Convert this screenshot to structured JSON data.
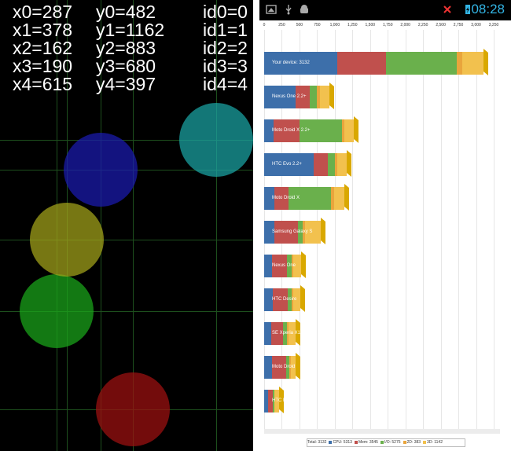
{
  "touch": {
    "rows": [
      {
        "x": "x0=287",
        "y": "y0=482",
        "id": "id0=0"
      },
      {
        "x": "x1=378",
        "y": "y1=1162",
        "id": "id1=1"
      },
      {
        "x": "x2=162",
        "y": "y2=883",
        "id": "id2=2"
      },
      {
        "x": "x3=190",
        "y": "y3=680",
        "id": "id3=3"
      },
      {
        "x": "x4=615",
        "y": "y4=397",
        "id": "id4=4"
      }
    ],
    "points": [
      {
        "id": 0,
        "x": 287,
        "y": 482,
        "color": "#1a1ab0"
      },
      {
        "id": 1,
        "x": 378,
        "y": 1162,
        "color": "#a01010"
      },
      {
        "id": 2,
        "x": 162,
        "y": 883,
        "color": "#1ba81b"
      },
      {
        "id": 3,
        "x": 190,
        "y": 680,
        "color": "#a5a51b"
      },
      {
        "id": 4,
        "x": 615,
        "y": 397,
        "color": "#1ba5a5"
      }
    ]
  },
  "status": {
    "time": "08:28",
    "icons": [
      "screenshot-icon",
      "usb-icon",
      "android-debug-icon",
      "no-signal-icon",
      "battery-charging-icon"
    ]
  },
  "chart_data": {
    "type": "bar",
    "orientation": "horizontal",
    "stacked": true,
    "xlim": [
      0,
      3250
    ],
    "ticks": [
      "0",
      "250",
      "500",
      "750",
      "1,000",
      "1,250",
      "1,500",
      "1,750",
      "2,000",
      "2,250",
      "2,500",
      "2,750",
      "3,000",
      "3,250"
    ],
    "categories": [
      "Your device: 3132",
      "Nexus One 2.2+",
      "Moto Droid X 2.2+",
      "HTC Evo 2.2+",
      "Moto Droid X",
      "Samsung Galaxy S",
      "Nexus One",
      "HTC Desire",
      "SE Xperia X10",
      "Moto Droid",
      "HTC Magic"
    ],
    "series": [
      {
        "name": "CPU",
        "color": "#3d6faa",
        "values": [
          1030,
          450,
          130,
          700,
          150,
          150,
          110,
          120,
          100,
          110,
          60
        ]
      },
      {
        "name": "Mem",
        "color": "#c0504d",
        "values": [
          700,
          200,
          370,
          200,
          200,
          330,
          210,
          210,
          170,
          200,
          60
        ]
      },
      {
        "name": "I/O",
        "color": "#6ab04c",
        "values": [
          1000,
          100,
          600,
          100,
          600,
          70,
          70,
          60,
          50,
          50,
          20
        ]
      },
      {
        "name": "2D",
        "color": "#e9a53c",
        "values": [
          80,
          40,
          40,
          40,
          40,
          30,
          20,
          20,
          20,
          20,
          10
        ]
      },
      {
        "name": "3D",
        "color": "#f2c14e",
        "values": [
          290,
          130,
          130,
          130,
          140,
          220,
          110,
          100,
          110,
          70,
          60
        ]
      }
    ],
    "legend_text": "Total: 3132  ■ CPU: 5313  ■ Mem: 3545  ■ I/O: 5275  ■ 2D: 383  ■ 3D: 1142",
    "legend": [
      "Total: 3132",
      "CPU: 5313",
      "Mem: 3545",
      "I/O: 5275",
      "2D: 383",
      "3D: 1142"
    ]
  }
}
